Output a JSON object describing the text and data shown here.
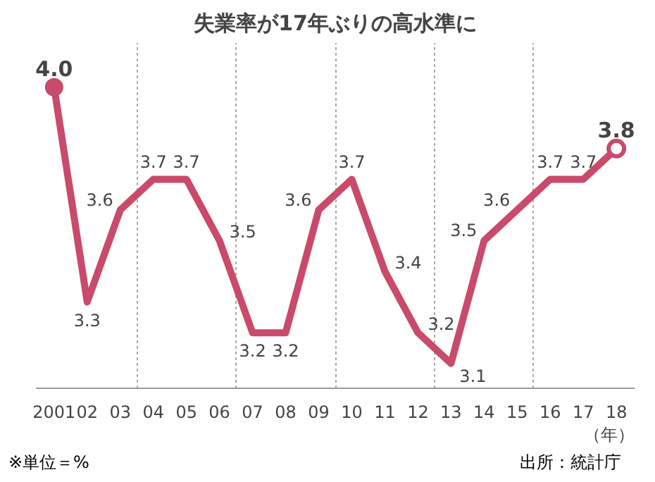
{
  "chart_data": {
    "type": "line",
    "title": "失業率が17年ぶりの高水準に",
    "xlabel": "（年）",
    "categories": [
      "2001",
      "02",
      "03",
      "04",
      "05",
      "06",
      "07",
      "08",
      "09",
      "10",
      "11",
      "12",
      "13",
      "14",
      "15",
      "16",
      "17",
      "18"
    ],
    "series": [
      {
        "color": "#c94a6a",
        "values": [
          4.0,
          3.3,
          3.6,
          3.7,
          3.7,
          3.5,
          3.2,
          3.2,
          3.6,
          3.7,
          3.4,
          3.2,
          3.1,
          3.5,
          3.6,
          3.7,
          3.7,
          3.8
        ],
        "value_labels": [
          "4.0",
          "3.3",
          "3.6",
          "3.7",
          "3.7",
          "3.5",
          "3.2",
          "3.2",
          "3.6",
          "3.7",
          "3.4",
          "3.2",
          "3.1",
          "3.5",
          "3.6",
          "3.7",
          "3.7",
          "3.8"
        ]
      }
    ],
    "grid": "x",
    "line_style": "solid",
    "annotations": [
      "※単位＝%",
      "出所：統計庁"
    ]
  }
}
